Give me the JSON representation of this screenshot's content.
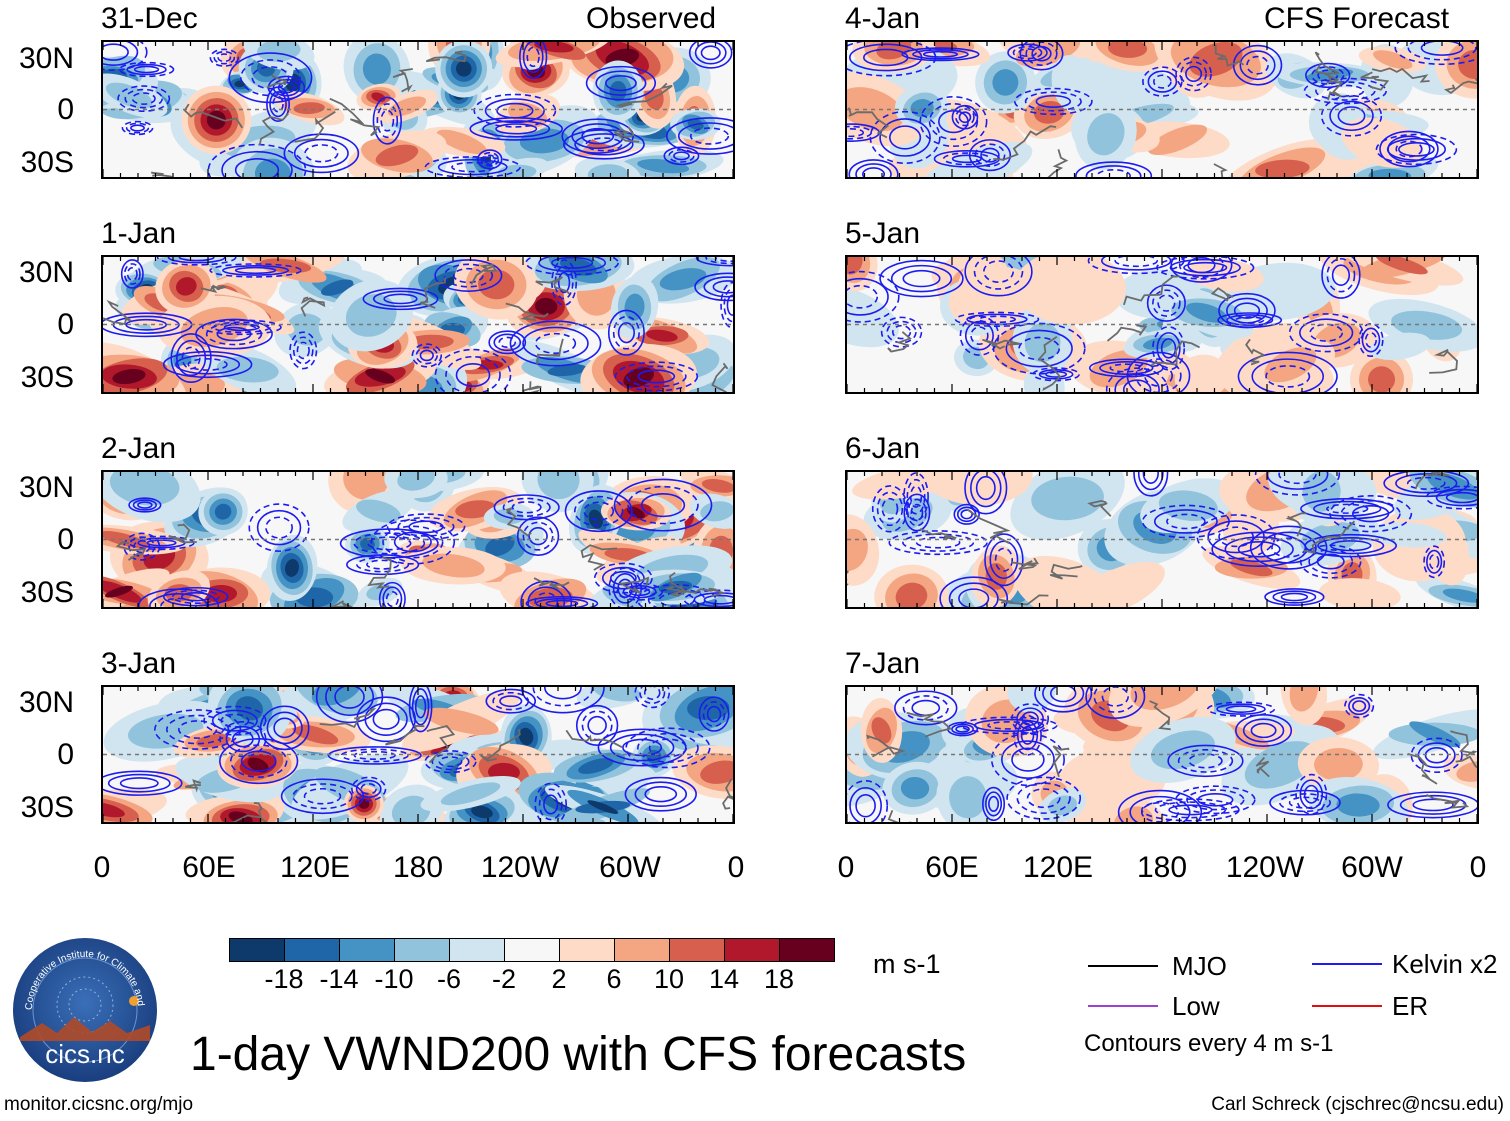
{
  "panels": [
    {
      "date": "31-Dec",
      "tag": "Observed"
    },
    {
      "date": "1-Jan",
      "tag": ""
    },
    {
      "date": "2-Jan",
      "tag": ""
    },
    {
      "date": "3-Jan",
      "tag": ""
    },
    {
      "date": "4-Jan",
      "tag": "CFS Forecast"
    },
    {
      "date": "5-Jan",
      "tag": ""
    },
    {
      "date": "6-Jan",
      "tag": ""
    },
    {
      "date": "7-Jan",
      "tag": ""
    }
  ],
  "lat_labels": [
    "30N",
    "0",
    "30S"
  ],
  "lon_labels": [
    "0",
    "60E",
    "120E",
    "180",
    "120W",
    "60W",
    "0"
  ],
  "colorbar": {
    "colors": [
      "#0d3a6b",
      "#1f66a8",
      "#4493c4",
      "#92c3dd",
      "#d1e5f0",
      "#f7f7f7",
      "#fddbc7",
      "#f4a582",
      "#d6604d",
      "#b2182b",
      "#67001f"
    ],
    "labels": [
      "-18",
      "-14",
      "-10",
      "-6",
      "-2",
      "2",
      "6",
      "10",
      "14",
      "18"
    ],
    "units": "m s-1"
  },
  "legend": {
    "items": [
      {
        "label": "MJO",
        "color": "#000000"
      },
      {
        "label": "Kelvin x2",
        "color": "#1c1cf0"
      },
      {
        "label": "Low",
        "color": "#a040d0"
      },
      {
        "label": "ER",
        "color": "#e01010"
      }
    ],
    "note": "Contours every 4 m s-1"
  },
  "title": "1-day VWND200 with CFS forecasts",
  "logo_text": "cics.nc",
  "logo_ring_text": "Cooperative Institute for Climate and Satellites",
  "footer_left": "monitor.cicsnc.org/mjo",
  "footer_right": "Carl Schreck (cjschrec@ncsu.edu)"
}
